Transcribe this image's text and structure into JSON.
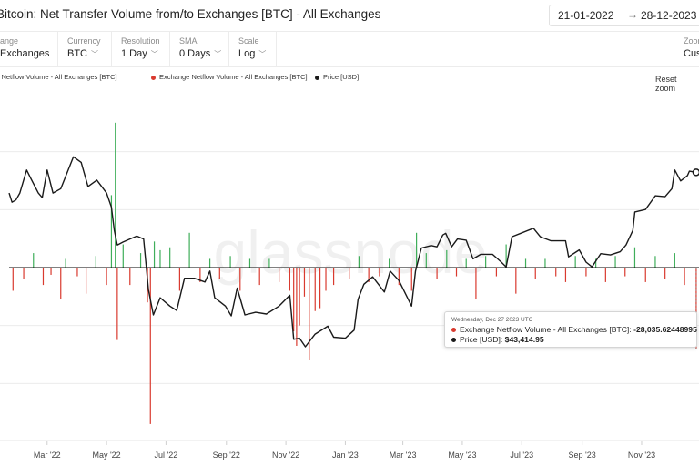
{
  "header": {
    "title": "Bitcoin: Net Transfer Volume from/to Exchanges [BTC] - All Exchanges",
    "date_from": "21-01-2022",
    "date_to": "28-12-2023",
    "date_arrow": "→"
  },
  "controls": [
    {
      "label": "ange",
      "value": "Exchanges"
    },
    {
      "label": "Currency",
      "value": "BTC"
    },
    {
      "label": "Resolution",
      "value": "1 Day"
    },
    {
      "label": "SMA",
      "value": "0 Days"
    },
    {
      "label": "Scale",
      "value": "Log"
    },
    {
      "label": "Zoom",
      "value": "Cust"
    }
  ],
  "legend": {
    "items": [
      {
        "label": "Exchange Netflow Volume - All Exchanges [BTC]",
        "color": "#3fae5a"
      },
      {
        "label": "Exchange Netflow Volume - All Exchanges [BTC]",
        "color": "#d93a2f"
      },
      {
        "label": "Price [USD]",
        "color": "#1a1a1a"
      }
    ],
    "reset_zoom": "Reset zoom"
  },
  "watermark": "glassnode",
  "tooltip": {
    "date": "Wednesday, Dec 27 2023 UTC",
    "netflow_label": "Exchange Netflow Volume - All Exchanges [BTC]:",
    "netflow_value": "-28,035.62448995",
    "price_label": "Price [USD]:",
    "price_value": "$43,414.95",
    "netflow_color": "#d93a2f",
    "price_color": "#1a1a1a"
  },
  "chart_data": {
    "type": "bar",
    "x_range": [
      "2022-01-21",
      "2023-12-28"
    ],
    "x_tick_labels": [
      "Mar '22",
      "May '22",
      "Jul '22",
      "Sep '22",
      "Nov '22",
      "Jan '23",
      "Mar '23",
      "May '23",
      "Jul '23",
      "Sep '23",
      "Nov '23"
    ],
    "x_tick_dates": [
      "2022-03-01",
      "2022-05-01",
      "2022-07-01",
      "2022-09-01",
      "2022-11-01",
      "2023-01-01",
      "2023-03-01",
      "2023-05-01",
      "2023-07-01",
      "2023-09-01",
      "2023-11-01"
    ],
    "colors": {
      "inflow": "#3fae5a",
      "outflow": "#d93a2f",
      "price": "#1a1a1a"
    },
    "netflow_ylim": [
      -60000,
      60000
    ],
    "price_scale": "log",
    "price_ylim": [
      13000,
      60000
    ],
    "netflow_series": [
      [
        "2022-01-25",
        -8000
      ],
      [
        "2022-02-05",
        -4000
      ],
      [
        "2022-02-15",
        5000
      ],
      [
        "2022-02-25",
        -6000
      ],
      [
        "2022-03-05",
        -2500
      ],
      [
        "2022-03-15",
        -11000
      ],
      [
        "2022-03-20",
        3000
      ],
      [
        "2022-04-01",
        -3000
      ],
      [
        "2022-04-10",
        -9000
      ],
      [
        "2022-04-20",
        4000
      ],
      [
        "2022-05-01",
        -6000
      ],
      [
        "2022-05-06",
        25000
      ],
      [
        "2022-05-10",
        50000
      ],
      [
        "2022-05-12",
        -25000
      ],
      [
        "2022-05-18",
        8000
      ],
      [
        "2022-05-25",
        -6000
      ],
      [
        "2022-06-05",
        5000
      ],
      [
        "2022-06-12",
        -12000
      ],
      [
        "2022-06-15",
        -54000
      ],
      [
        "2022-06-19",
        9000
      ],
      [
        "2022-06-25",
        6000
      ],
      [
        "2022-07-05",
        7000
      ],
      [
        "2022-07-15",
        -8000
      ],
      [
        "2022-07-25",
        12000
      ],
      [
        "2022-08-05",
        -5000
      ],
      [
        "2022-08-15",
        3000
      ],
      [
        "2022-08-25",
        -4000
      ],
      [
        "2022-09-05",
        4000
      ],
      [
        "2022-09-15",
        -8000
      ],
      [
        "2022-09-25",
        3000
      ],
      [
        "2022-10-05",
        -6000
      ],
      [
        "2022-10-15",
        3000
      ],
      [
        "2022-10-25",
        -5000
      ],
      [
        "2022-11-05",
        -8000
      ],
      [
        "2022-11-09",
        -22000
      ],
      [
        "2022-11-12",
        -27000
      ],
      [
        "2022-11-15",
        -20000
      ],
      [
        "2022-11-20",
        -10000
      ],
      [
        "2022-11-25",
        -32000
      ],
      [
        "2022-12-01",
        -15000
      ],
      [
        "2022-12-06",
        -14000
      ],
      [
        "2022-12-12",
        -8000
      ],
      [
        "2022-12-20",
        -6000
      ],
      [
        "2023-01-05",
        -4000
      ],
      [
        "2023-01-15",
        4000
      ],
      [
        "2023-01-25",
        -5000
      ],
      [
        "2023-02-05",
        -3000
      ],
      [
        "2023-02-15",
        3000
      ],
      [
        "2023-02-25",
        -6000
      ],
      [
        "2023-03-10",
        -8000
      ],
      [
        "2023-03-15",
        12000
      ],
      [
        "2023-03-25",
        5000
      ],
      [
        "2023-04-05",
        -4000
      ],
      [
        "2023-04-15",
        6000
      ],
      [
        "2023-04-25",
        -3000
      ],
      [
        "2023-05-05",
        3000
      ],
      [
        "2023-05-15",
        -11000
      ],
      [
        "2023-05-25",
        4000
      ],
      [
        "2023-06-05",
        -3000
      ],
      [
        "2023-06-15",
        8000
      ],
      [
        "2023-06-25",
        -9000
      ],
      [
        "2023-07-05",
        3000
      ],
      [
        "2023-07-15",
        -4000
      ],
      [
        "2023-07-25",
        3000
      ],
      [
        "2023-08-05",
        -3000
      ],
      [
        "2023-08-15",
        -5000
      ],
      [
        "2023-08-25",
        4000
      ],
      [
        "2023-09-05",
        -3000
      ],
      [
        "2023-09-15",
        3000
      ],
      [
        "2023-09-25",
        -5000
      ],
      [
        "2023-10-05",
        4000
      ],
      [
        "2023-10-15",
        -3000
      ],
      [
        "2023-10-25",
        7000
      ],
      [
        "2023-11-05",
        -5000
      ],
      [
        "2023-11-15",
        4000
      ],
      [
        "2023-11-25",
        -4000
      ],
      [
        "2023-12-05",
        5000
      ],
      [
        "2023-12-15",
        -6000
      ],
      [
        "2023-12-27",
        -28035.62
      ]
    ],
    "price_series": [
      [
        "2022-01-21",
        38500
      ],
      [
        "2022-01-24",
        36500
      ],
      [
        "2022-01-28",
        37000
      ],
      [
        "2022-02-01",
        38500
      ],
      [
        "2022-02-08",
        44000
      ],
      [
        "2022-02-12",
        42000
      ],
      [
        "2022-02-20",
        38500
      ],
      [
        "2022-02-24",
        37500
      ],
      [
        "2022-03-01",
        44000
      ],
      [
        "2022-03-07",
        38500
      ],
      [
        "2022-03-15",
        39500
      ],
      [
        "2022-03-28",
        47500
      ],
      [
        "2022-04-05",
        46000
      ],
      [
        "2022-04-12",
        40000
      ],
      [
        "2022-04-21",
        41500
      ],
      [
        "2022-05-01",
        38500
      ],
      [
        "2022-05-06",
        35500
      ],
      [
        "2022-05-09",
        31000
      ],
      [
        "2022-05-12",
        28500
      ],
      [
        "2022-05-18",
        29000
      ],
      [
        "2022-05-25",
        29500
      ],
      [
        "2022-06-01",
        30000
      ],
      [
        "2022-06-08",
        29500
      ],
      [
        "2022-06-13",
        22000
      ],
      [
        "2022-06-18",
        19000
      ],
      [
        "2022-06-25",
        21000
      ],
      [
        "2022-07-05",
        20000
      ],
      [
        "2022-07-12",
        19500
      ],
      [
        "2022-07-20",
        23500
      ],
      [
        "2022-07-30",
        23500
      ],
      [
        "2022-08-10",
        23000
      ],
      [
        "2022-08-15",
        24500
      ],
      [
        "2022-08-20",
        21000
      ],
      [
        "2022-08-31",
        20000
      ],
      [
        "2022-09-06",
        18900
      ],
      [
        "2022-09-12",
        22200
      ],
      [
        "2022-09-20",
        19000
      ],
      [
        "2022-10-01",
        19300
      ],
      [
        "2022-10-12",
        19100
      ],
      [
        "2022-10-25",
        20000
      ],
      [
        "2022-11-05",
        21300
      ],
      [
        "2022-11-09",
        16500
      ],
      [
        "2022-11-15",
        16600
      ],
      [
        "2022-11-21",
        15800
      ],
      [
        "2022-12-01",
        17000
      ],
      [
        "2022-12-14",
        17800
      ],
      [
        "2022-12-20",
        16700
      ],
      [
        "2023-01-01",
        16600
      ],
      [
        "2023-01-10",
        17400
      ],
      [
        "2023-01-14",
        20800
      ],
      [
        "2023-01-20",
        22700
      ],
      [
        "2023-01-29",
        23700
      ],
      [
        "2023-02-10",
        21700
      ],
      [
        "2023-02-16",
        24500
      ],
      [
        "2023-02-25",
        23200
      ],
      [
        "2023-03-10",
        20000
      ],
      [
        "2023-03-14",
        24500
      ],
      [
        "2023-03-20",
        28000
      ],
      [
        "2023-03-30",
        28400
      ],
      [
        "2023-04-05",
        28200
      ],
      [
        "2023-04-11",
        30200
      ],
      [
        "2023-04-14",
        30500
      ],
      [
        "2023-04-20",
        28200
      ],
      [
        "2023-04-26",
        29500
      ],
      [
        "2023-05-05",
        29300
      ],
      [
        "2023-05-12",
        26300
      ],
      [
        "2023-05-20",
        27000
      ],
      [
        "2023-06-01",
        27000
      ],
      [
        "2023-06-10",
        25800
      ],
      [
        "2023-06-15",
        25100
      ],
      [
        "2023-06-21",
        29900
      ],
      [
        "2023-06-30",
        30500
      ],
      [
        "2023-07-13",
        31400
      ],
      [
        "2023-07-20",
        29900
      ],
      [
        "2023-07-31",
        29200
      ],
      [
        "2023-08-15",
        29200
      ],
      [
        "2023-08-18",
        26600
      ],
      [
        "2023-08-29",
        27700
      ],
      [
        "2023-09-05",
        25800
      ],
      [
        "2023-09-11",
        25100
      ],
      [
        "2023-09-20",
        27100
      ],
      [
        "2023-09-30",
        26900
      ],
      [
        "2023-10-10",
        27400
      ],
      [
        "2023-10-16",
        28500
      ],
      [
        "2023-10-23",
        31000
      ],
      [
        "2023-10-25",
        34500
      ],
      [
        "2023-11-05",
        35000
      ],
      [
        "2023-11-15",
        37900
      ],
      [
        "2023-11-25",
        37700
      ],
      [
        "2023-12-02",
        39500
      ],
      [
        "2023-12-05",
        44000
      ],
      [
        "2023-12-11",
        41300
      ],
      [
        "2023-12-18",
        42600
      ],
      [
        "2023-12-20",
        43700
      ],
      [
        "2023-12-27",
        43414.95
      ]
    ],
    "grid": true,
    "legend_position": "top-left"
  }
}
